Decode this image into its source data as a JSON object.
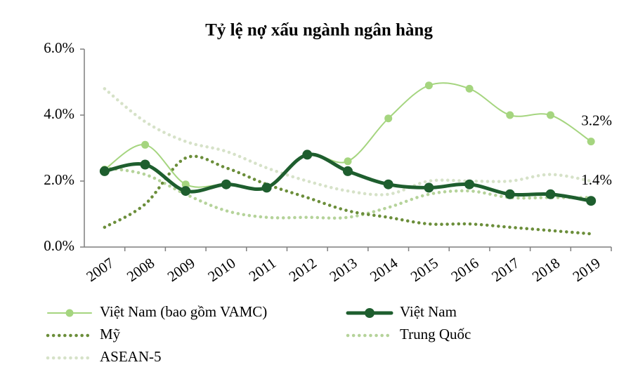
{
  "chart_data": {
    "type": "line",
    "title": "Tỷ lệ nợ xấu ngành ngân hàng",
    "categories": [
      "2007",
      "2008",
      "2009",
      "2010",
      "2011",
      "2012",
      "2013",
      "2014",
      "2015",
      "2016",
      "2017",
      "2018",
      "2019"
    ],
    "series": [
      {
        "name": "Việt Nam (bao gồm VAMC)",
        "color": "#a5d57f",
        "style": "solid",
        "marker": true,
        "values": [
          2.35,
          3.1,
          1.9,
          1.9,
          1.8,
          2.8,
          2.6,
          3.9,
          4.9,
          4.8,
          4.0,
          4.0,
          3.2
        ],
        "value_labels": [
          null,
          null,
          null,
          null,
          null,
          null,
          null,
          null,
          null,
          null,
          null,
          null,
          "3.2%"
        ]
      },
      {
        "name": "Việt Nam",
        "color": "#1e5e2e",
        "style": "solid",
        "marker": true,
        "values": [
          2.3,
          2.5,
          1.7,
          1.9,
          1.8,
          2.8,
          2.3,
          1.9,
          1.8,
          1.9,
          1.6,
          1.6,
          1.4
        ],
        "value_labels": [
          null,
          null,
          null,
          null,
          null,
          null,
          null,
          null,
          null,
          null,
          null,
          null,
          "1.4%"
        ]
      },
      {
        "name": "Mỹ",
        "color": "#6b8e3a",
        "style": "dotted",
        "marker": false,
        "values": [
          0.6,
          1.3,
          2.7,
          2.4,
          1.9,
          1.5,
          1.1,
          0.9,
          0.7,
          0.7,
          0.6,
          0.5,
          0.4
        ]
      },
      {
        "name": "Trung Quốc",
        "color": "#b5d39a",
        "style": "dotted",
        "marker": false,
        "values": [
          2.4,
          2.2,
          1.6,
          1.1,
          0.9,
          0.9,
          0.9,
          1.2,
          1.6,
          1.7,
          1.5,
          1.5,
          1.5
        ]
      },
      {
        "name": "ASEAN-5",
        "color": "#d6e2c8",
        "style": "dotted",
        "marker": false,
        "values": [
          4.8,
          3.8,
          3.2,
          2.9,
          2.4,
          2.0,
          1.7,
          1.6,
          2.0,
          2.0,
          2.0,
          2.2,
          2.0
        ]
      }
    ],
    "ylim": [
      0,
      6
    ],
    "yticks": [
      {
        "value": 0,
        "label": "0.0%"
      },
      {
        "value": 2,
        "label": "2.0%"
      },
      {
        "value": 4,
        "label": "4.0%"
      },
      {
        "value": 6,
        "label": "6.0%"
      }
    ],
    "grid": false
  }
}
